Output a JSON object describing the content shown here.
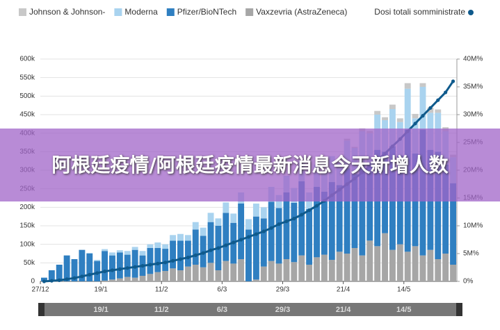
{
  "chart_data": {
    "type": "bar",
    "stacked": true,
    "categories": [
      "27/12",
      null,
      null,
      null,
      null,
      null,
      null,
      null,
      "19/1",
      null,
      null,
      null,
      null,
      null,
      null,
      null,
      "11/2",
      null,
      null,
      null,
      null,
      null,
      null,
      null,
      "6/3",
      null,
      null,
      null,
      null,
      null,
      null,
      null,
      "29/3",
      null,
      null,
      null,
      null,
      null,
      null,
      null,
      "21/4",
      null,
      null,
      null,
      null,
      null,
      null,
      null,
      "14/5",
      null,
      null,
      null,
      null,
      null,
      null
    ],
    "series": [
      {
        "name": "Johnson & Johnson-",
        "color": "#c8c8c8",
        "values": [
          0,
          0,
          0,
          0,
          0,
          0,
          0,
          0,
          0,
          0,
          0,
          0,
          0,
          0,
          0,
          0,
          0,
          0,
          0,
          0,
          0,
          0,
          0,
          0,
          0,
          0,
          0,
          0,
          0,
          0,
          0,
          0,
          0,
          0,
          0,
          0,
          0,
          0,
          0,
          0,
          5000,
          3000,
          8000,
          6000,
          10000,
          8000,
          12000,
          10000,
          15000,
          12000,
          10000,
          14000,
          9000,
          11000,
          7000
        ]
      },
      {
        "name": "Moderna",
        "color": "#a9d3ef",
        "values": [
          0,
          0,
          0,
          0,
          0,
          0,
          2000,
          3000,
          5000,
          8000,
          6000,
          10000,
          8000,
          12000,
          10000,
          15000,
          12000,
          15000,
          18000,
          15000,
          20000,
          22000,
          25000,
          20000,
          28000,
          25000,
          30000,
          28000,
          35000,
          30000,
          40000,
          35000,
          45000,
          40000,
          55000,
          45000,
          60000,
          55000,
          70000,
          60000,
          75000,
          70000,
          85000,
          80000,
          95000,
          85000,
          100000,
          90000,
          110000,
          95000,
          115000,
          100000,
          105000,
          90000,
          70000
        ]
      },
      {
        "name": "Pfizer/BioNTech",
        "color": "#2f7fc1",
        "values": [
          10000,
          30000,
          45000,
          70000,
          60000,
          85000,
          75000,
          55000,
          80000,
          65000,
          70000,
          60000,
          75000,
          55000,
          70000,
          65000,
          60000,
          75000,
          80000,
          70000,
          95000,
          85000,
          110000,
          120000,
          130000,
          110000,
          150000,
          140000,
          170000,
          130000,
          160000,
          150000,
          180000,
          160000,
          200000,
          150000,
          190000,
          170000,
          210000,
          180000,
          230000,
          200000,
          250000,
          210000,
          260000,
          220000,
          280000,
          240000,
          330000,
          250000,
          340000,
          270000,
          290000,
          240000,
          220000
        ]
      },
      {
        "name": "Vaxzevria (AstraZeneca)",
        "color": "#a6a6a6",
        "values": [
          0,
          0,
          0,
          0,
          0,
          0,
          0,
          0,
          2000,
          5000,
          8000,
          12000,
          10000,
          15000,
          20000,
          25000,
          28000,
          35000,
          30000,
          40000,
          45000,
          38000,
          50000,
          30000,
          55000,
          48000,
          60000,
          0,
          5000,
          40000,
          55000,
          48000,
          60000,
          52000,
          70000,
          45000,
          65000,
          72000,
          58000,
          80000,
          75000,
          90000,
          70000,
          110000,
          95000,
          130000,
          85000,
          100000,
          80000,
          95000,
          70000,
          85000,
          60000,
          75000,
          45000
        ]
      },
      {
        "name": "Dosi totali somministrate",
        "color": "#0f5a8c",
        "axis": "y2",
        "type": "line",
        "values": [
          0,
          0.1,
          0.2,
          0.4,
          0.6,
          0.9,
          1.2,
          1.5,
          1.8,
          2.0,
          2.2,
          2.4,
          2.6,
          2.8,
          3.0,
          3.2,
          3.4,
          3.7,
          4.0,
          4.3,
          4.7,
          5.1,
          5.6,
          6.0,
          6.5,
          7.0,
          7.5,
          8.0,
          8.5,
          9.0,
          9.6,
          10.3,
          10.8,
          11.3,
          12.0,
          12.8,
          13.6,
          14.5,
          15.5,
          16.5,
          17.5,
          18.5,
          19.6,
          20.7,
          21.8,
          23.0,
          24.3,
          25.6,
          27.0,
          28.4,
          29.8,
          31.2,
          32.6,
          34.0,
          36.0
        ]
      }
    ],
    "ylim": [
      0,
      600000
    ],
    "yticks": [
      0,
      {
        "value": 50000,
        "label": "50k"
      },
      {
        "value": 100000,
        "label": "100k"
      },
      {
        "value": 150000,
        "label": "150k"
      },
      {
        "value": 200000,
        "label": "200k"
      },
      {
        "value": 250000,
        "label": "250k"
      },
      {
        "value": 300000,
        "label": "300k"
      },
      {
        "value": 350000,
        "label": "350k"
      },
      {
        "value": 400000,
        "label": "400k"
      },
      {
        "value": 450000,
        "label": "450k"
      },
      {
        "value": 500000,
        "label": "500k"
      },
      {
        "value": 550000,
        "label": "550k"
      },
      {
        "value": 600000,
        "label": "600k"
      }
    ],
    "y2lim": [
      0,
      40
    ],
    "y2ticks": [
      {
        "value": 0,
        "label": "0%"
      },
      {
        "value": 5,
        "label": "5M%"
      },
      {
        "value": 10,
        "label": "10M%"
      },
      {
        "value": 15,
        "label": "15M%"
      },
      {
        "value": 20,
        "label": "20M%"
      },
      {
        "value": 25,
        "label": "25M%"
      },
      {
        "value": 30,
        "label": "30M%"
      },
      {
        "value": 35,
        "label": "35M%"
      },
      {
        "value": 40,
        "label": "40M%"
      }
    ],
    "grid": true,
    "legend": "top"
  },
  "overlay_title": "阿根廷疫情/阿根廷疫情最新消息今天新增人数"
}
